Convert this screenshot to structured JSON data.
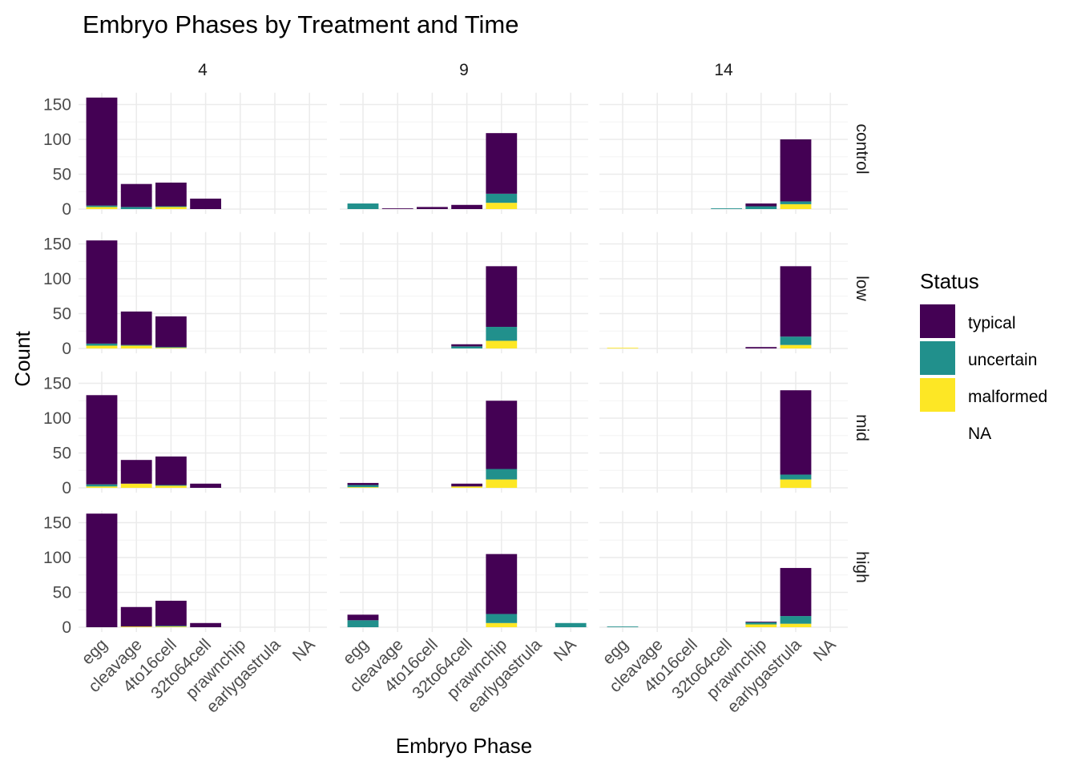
{
  "chart_data": {
    "type": "bar",
    "stacked": true,
    "title": "Embryo Phases by Treatment and Time",
    "xlabel": "Embryo Phase",
    "ylabel": "Count",
    "ylim": [
      0,
      160
    ],
    "yticks": [
      "0",
      "50",
      "100",
      "150"
    ],
    "categories": [
      "egg",
      "cleavage",
      "4to16cell",
      "32to64cell",
      "prawnchip",
      "earlygastrula",
      "NA"
    ],
    "facet_columns": [
      "4",
      "9",
      "14"
    ],
    "facet_rows": [
      "control",
      "low",
      "mid",
      "high"
    ],
    "legend": {
      "title": "Status",
      "placement": "right",
      "items": [
        {
          "label": "typical",
          "color": "#440154"
        },
        {
          "label": "uncertain",
          "color": "#21908C"
        },
        {
          "label": "malformed",
          "color": "#FDE725"
        },
        {
          "label": "NA",
          "color": "#ffffff"
        }
      ]
    },
    "stack_order_bottom_to_top": [
      "malformed",
      "uncertain",
      "typical"
    ],
    "panels": [
      {
        "row": "control",
        "col": "4",
        "bars": [
          {
            "cat": "egg",
            "malformed": 3,
            "uncertain": 2,
            "typical": 155
          },
          {
            "cat": "cleavage",
            "malformed": 0,
            "uncertain": 3,
            "typical": 33
          },
          {
            "cat": "4to16cell",
            "malformed": 3,
            "uncertain": 1,
            "typical": 34
          },
          {
            "cat": "32to64cell",
            "malformed": 0,
            "uncertain": 0,
            "typical": 15
          }
        ]
      },
      {
        "row": "control",
        "col": "9",
        "bars": [
          {
            "cat": "egg",
            "malformed": 0,
            "uncertain": 8,
            "typical": 0
          },
          {
            "cat": "cleavage",
            "malformed": 0,
            "uncertain": 0,
            "typical": 1
          },
          {
            "cat": "4to16cell",
            "malformed": 0,
            "uncertain": 0,
            "typical": 3
          },
          {
            "cat": "32to64cell",
            "malformed": 0,
            "uncertain": 0,
            "typical": 6
          },
          {
            "cat": "prawnchip",
            "malformed": 9,
            "uncertain": 13,
            "typical": 87
          }
        ]
      },
      {
        "row": "control",
        "col": "14",
        "bars": [
          {
            "cat": "32to64cell",
            "malformed": 0,
            "uncertain": 1,
            "typical": 0
          },
          {
            "cat": "prawnchip",
            "malformed": 0,
            "uncertain": 4,
            "typical": 4
          },
          {
            "cat": "earlygastrula",
            "malformed": 7,
            "uncertain": 4,
            "typical": 89
          }
        ]
      },
      {
        "row": "low",
        "col": "4",
        "bars": [
          {
            "cat": "egg",
            "malformed": 4,
            "uncertain": 3,
            "typical": 148
          },
          {
            "cat": "cleavage",
            "malformed": 4,
            "uncertain": 1,
            "typical": 48
          },
          {
            "cat": "4to16cell",
            "malformed": 1,
            "uncertain": 1,
            "typical": 44
          }
        ]
      },
      {
        "row": "low",
        "col": "9",
        "bars": [
          {
            "cat": "32to64cell",
            "malformed": 0,
            "uncertain": 3,
            "typical": 3
          },
          {
            "cat": "prawnchip",
            "malformed": 11,
            "uncertain": 20,
            "typical": 87
          }
        ]
      },
      {
        "row": "low",
        "col": "14",
        "bars": [
          {
            "cat": "egg",
            "malformed": 1,
            "uncertain": 0,
            "typical": 0
          },
          {
            "cat": "prawnchip",
            "malformed": 0,
            "uncertain": 0,
            "typical": 2
          },
          {
            "cat": "earlygastrula",
            "malformed": 5,
            "uncertain": 12,
            "typical": 101
          }
        ]
      },
      {
        "row": "mid",
        "col": "4",
        "bars": [
          {
            "cat": "egg",
            "malformed": 2,
            "uncertain": 3,
            "typical": 128
          },
          {
            "cat": "cleavage",
            "malformed": 6,
            "uncertain": 0,
            "typical": 34
          },
          {
            "cat": "4to16cell",
            "malformed": 3,
            "uncertain": 1,
            "typical": 41
          },
          {
            "cat": "32to64cell",
            "malformed": 0,
            "uncertain": 0,
            "typical": 6
          }
        ]
      },
      {
        "row": "mid",
        "col": "9",
        "bars": [
          {
            "cat": "egg",
            "malformed": 1,
            "uncertain": 3,
            "typical": 3
          },
          {
            "cat": "32to64cell",
            "malformed": 2,
            "uncertain": 0,
            "typical": 4
          },
          {
            "cat": "prawnchip",
            "malformed": 12,
            "uncertain": 15,
            "typical": 98
          }
        ]
      },
      {
        "row": "mid",
        "col": "14",
        "bars": [
          {
            "cat": "earlygastrula",
            "malformed": 12,
            "uncertain": 7,
            "typical": 121
          }
        ]
      },
      {
        "row": "high",
        "col": "4",
        "bars": [
          {
            "cat": "egg",
            "malformed": 0,
            "uncertain": 0,
            "typical": 163
          },
          {
            "cat": "cleavage",
            "malformed": 1,
            "uncertain": 0,
            "typical": 28
          },
          {
            "cat": "4to16cell",
            "malformed": 1,
            "uncertain": 1,
            "typical": 36
          },
          {
            "cat": "32to64cell",
            "malformed": 0,
            "uncertain": 0,
            "typical": 6
          }
        ]
      },
      {
        "row": "high",
        "col": "9",
        "bars": [
          {
            "cat": "egg",
            "malformed": 0,
            "uncertain": 10,
            "typical": 8
          },
          {
            "cat": "prawnchip",
            "malformed": 6,
            "uncertain": 13,
            "typical": 86
          },
          {
            "cat": "NA",
            "malformed": 0,
            "uncertain": 6,
            "typical": 0
          }
        ]
      },
      {
        "row": "high",
        "col": "14",
        "bars": [
          {
            "cat": "egg",
            "malformed": 0,
            "uncertain": 1,
            "typical": 0
          },
          {
            "cat": "prawnchip",
            "malformed": 4,
            "uncertain": 3,
            "typical": 1
          },
          {
            "cat": "earlygastrula",
            "malformed": 5,
            "uncertain": 11,
            "typical": 69
          }
        ]
      }
    ]
  }
}
